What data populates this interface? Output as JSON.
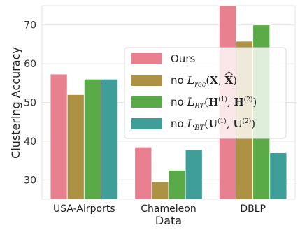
{
  "chart_data": {
    "type": "bar",
    "xlabel": "Data",
    "ylabel": "Clustering Accuracy",
    "categories": [
      "USA-Airports",
      "Chameleon",
      "DBLP"
    ],
    "ylim": [
      25,
      75
    ],
    "yticks": [
      30,
      40,
      50,
      60,
      70
    ],
    "grid": true,
    "legend_position": "upper-right",
    "series": [
      {
        "name": "Ours",
        "color": "#e8808f",
        "values": [
          57.3,
          38.5,
          75.0
        ]
      },
      {
        "name": "no L_rec(X, X̂)",
        "color": "#ad9243",
        "values": [
          52.0,
          29.5,
          65.8
        ]
      },
      {
        "name": "no L_BT(H(1), H(2))",
        "color": "#5aaa48",
        "values": [
          56.0,
          32.5,
          70.0
        ]
      },
      {
        "name": "no L_BT(U(1), U(2))",
        "color": "#3f9f98",
        "values": [
          56.0,
          37.8,
          37.0
        ]
      }
    ],
    "legend_text": [
      {
        "prefix": "Ours"
      },
      {
        "prefix": "no ",
        "script": "L",
        "sub": "rec",
        "args": "(X, X)"
      },
      {
        "prefix": "no ",
        "script": "L",
        "sub": "BT",
        "args": "(H(1), H(2))"
      },
      {
        "prefix": "no ",
        "script": "L",
        "sub": "BT",
        "args": "(U(1), U(2))"
      }
    ]
  }
}
